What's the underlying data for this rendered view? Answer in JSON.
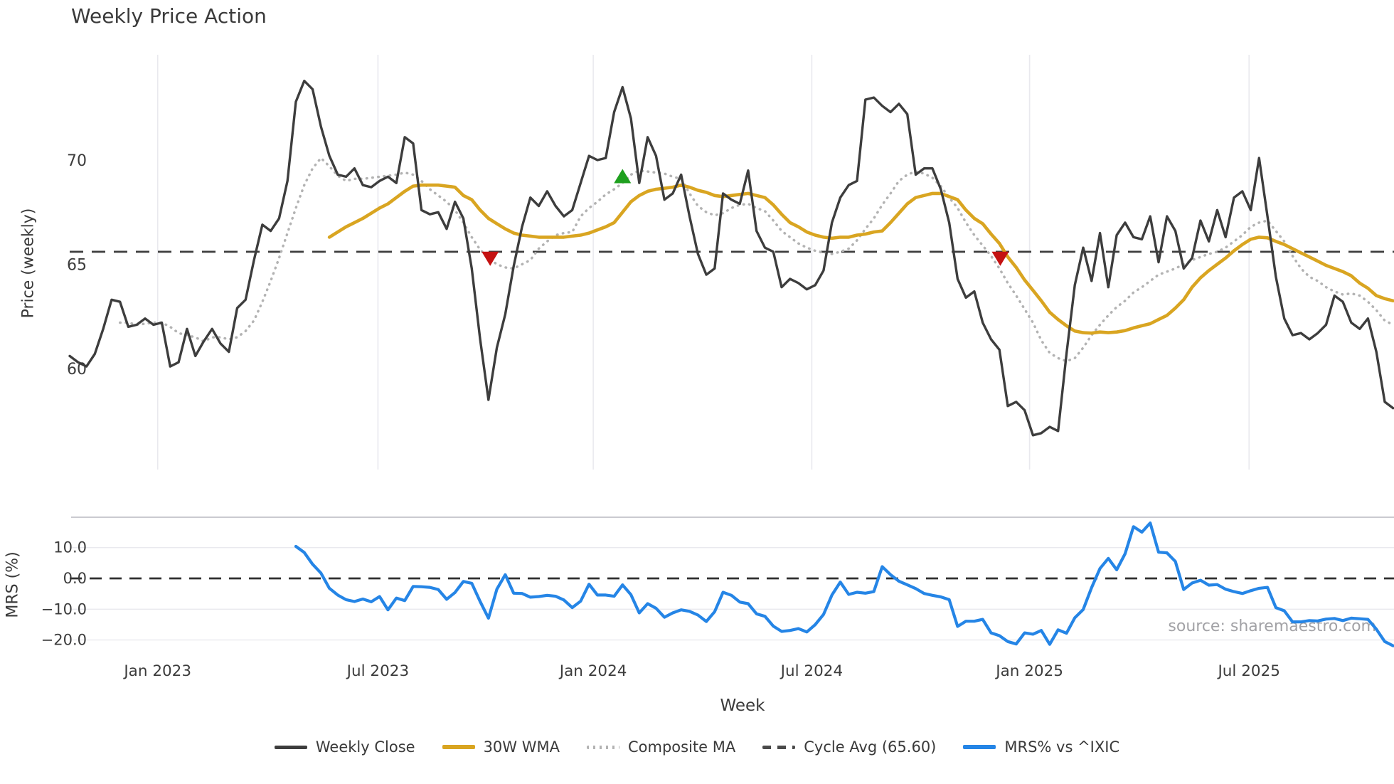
{
  "title": "Weekly Price Action",
  "source": "source: sharemaestro.com",
  "legend": [
    {
      "label": "Weekly Close",
      "style": "solid",
      "color": "#3d3d3d",
      "thickness": 5
    },
    {
      "label": "30W WMA",
      "style": "solid",
      "color": "#d9a521",
      "thickness": 6
    },
    {
      "label": "Composite MA",
      "style": "dotted",
      "color": "#b3b3b3",
      "thickness": 5
    },
    {
      "label": "Cycle Avg (65.60)",
      "style": "dashed",
      "color": "#4a4a4a",
      "thickness": 5
    },
    {
      "label": "MRS% vs ^IXIC",
      "style": "solid",
      "color": "#2585e6",
      "thickness": 6
    }
  ],
  "chart_data": {
    "type": "line",
    "xlabel": "Week",
    "x_unit": "week_index",
    "xticks": [
      {
        "label": "Jan 2023",
        "week": 10.5
      },
      {
        "label": "Jul 2023",
        "week": 36.8
      },
      {
        "label": "Jan 2024",
        "week": 62.5
      },
      {
        "label": "Jul 2024",
        "week": 88.6
      },
      {
        "label": "Jan 2025",
        "week": 114.6
      },
      {
        "label": "Jul 2025",
        "week": 140.8
      }
    ],
    "grid_color": "#e9e9ee",
    "panels": [
      {
        "ylabel": "Price (weekly)",
        "ylim": [
          55.2,
          75.1
        ],
        "yticks": [
          {
            "label": "70",
            "value": 70
          },
          {
            "label": "65",
            "value": 65
          },
          {
            "label": "60",
            "value": 60
          }
        ],
        "hline": {
          "label": "Cycle Avg (65.60)",
          "value": 65.6,
          "style": "dashed",
          "color": "#3d3d3d"
        },
        "markers": [
          {
            "type": "sell",
            "shape": "triangle-down",
            "color": "#c41212",
            "week": 50.2,
            "value": 65.3
          },
          {
            "type": "buy",
            "shape": "triangle-up",
            "color": "#1fa01f",
            "week": 66.0,
            "value": 69.2
          },
          {
            "type": "sell",
            "shape": "triangle-down",
            "color": "#c41212",
            "week": 111.1,
            "value": 65.3
          }
        ],
        "series": [
          {
            "name": "Composite MA",
            "style": "dotted",
            "color": "#b3b3b3",
            "width": 3.5,
            "start_week": 6,
            "values": [
              62.2,
              62.2,
              62.1,
              62.15,
              62.2,
              62.2,
              62.0,
              61.7,
              61.6,
              61.5,
              61.3,
              61.5,
              61.5,
              61.4,
              61.5,
              61.8,
              62.3,
              63.2,
              64.2,
              65.3,
              66.5,
              67.7,
              68.8,
              69.6,
              70.1,
              69.7,
              69.25,
              69.0,
              69.1,
              69.1,
              69.15,
              69.2,
              69.25,
              69.3,
              69.4,
              69.3,
              69.0,
              68.6,
              68.3,
              68.0,
              67.6,
              67.0,
              66.3,
              65.7,
              65.3,
              65.0,
              64.85,
              64.8,
              65.0,
              65.2,
              65.75,
              66.1,
              66.4,
              66.5,
              66.55,
              67.3,
              67.7,
              68.0,
              68.35,
              68.6,
              68.9,
              69.3,
              69.5,
              69.45,
              69.4,
              69.35,
              69.2,
              69.1,
              68.4,
              67.8,
              67.5,
              67.35,
              67.45,
              67.7,
              67.85,
              67.9,
              67.7,
              67.55,
              67.1,
              66.6,
              66.3,
              66.0,
              65.8,
              65.65,
              65.55,
              65.5,
              65.6,
              65.75,
              66.15,
              66.7,
              67.2,
              67.85,
              68.4,
              69.0,
              69.3,
              69.45,
              69.35,
              69.15,
              68.75,
              68.2,
              67.7,
              67.0,
              66.4,
              65.9,
              65.4,
              64.8,
              64.1,
              63.5,
              62.85,
              62.2,
              61.35,
              60.75,
              60.5,
              60.35,
              60.5,
              61.0,
              61.6,
              62.1,
              62.55,
              62.95,
              63.25,
              63.65,
              63.9,
              64.2,
              64.5,
              64.65,
              64.8,
              65.0,
              65.2,
              65.35,
              65.5,
              65.6,
              65.8,
              66.1,
              66.4,
              66.8,
              67.0,
              67.1,
              66.6,
              66.1,
              65.4,
              64.8,
              64.4,
              64.2,
              63.9,
              63.7,
              63.55,
              63.6,
              63.5,
              63.2,
              62.8,
              62.3,
              62.1
            ]
          },
          {
            "name": "30W WMA",
            "style": "solid",
            "color": "#d9a521",
            "width": 4.6,
            "start_week": 31,
            "values": [
              66.3,
              66.55,
              66.8,
              67.0,
              67.2,
              67.45,
              67.7,
              67.9,
              68.2,
              68.5,
              68.75,
              68.8,
              68.8,
              68.8,
              68.75,
              68.7,
              68.3,
              68.1,
              67.6,
              67.2,
              66.95,
              66.7,
              66.5,
              66.4,
              66.35,
              66.3,
              66.3,
              66.3,
              66.3,
              66.35,
              66.4,
              66.5,
              66.65,
              66.8,
              67.0,
              67.5,
              68.0,
              68.3,
              68.5,
              68.6,
              68.65,
              68.7,
              68.8,
              68.7,
              68.55,
              68.45,
              68.3,
              68.25,
              68.3,
              68.35,
              68.4,
              68.3,
              68.2,
              67.85,
              67.4,
              67.0,
              66.8,
              66.55,
              66.4,
              66.3,
              66.25,
              66.3,
              66.3,
              66.4,
              66.45,
              66.55,
              66.6,
              67.0,
              67.45,
              67.9,
              68.2,
              68.3,
              68.4,
              68.4,
              68.25,
              68.1,
              67.6,
              67.2,
              66.95,
              66.45,
              66.0,
              65.35,
              64.85,
              64.25,
              63.75,
              63.25,
              62.7,
              62.35,
              62.05,
              61.8,
              61.72,
              61.7,
              61.75,
              61.72,
              61.75,
              61.82,
              61.95,
              62.05,
              62.15,
              62.35,
              62.55,
              62.9,
              63.3,
              63.9,
              64.35,
              64.7,
              65.0,
              65.3,
              65.65,
              65.95,
              66.2,
              66.3,
              66.27,
              66.1,
              65.95,
              65.75,
              65.55,
              65.35,
              65.15,
              64.95,
              64.8,
              64.65,
              64.45,
              64.1,
              63.85,
              63.5,
              63.35,
              63.25
            ]
          },
          {
            "name": "Weekly Close",
            "style": "solid",
            "color": "#3d3d3d",
            "width": 3.4,
            "start_week": 0,
            "values": [
              60.6,
              60.3,
              60.1,
              60.7,
              61.9,
              63.3,
              63.2,
              62.0,
              62.1,
              62.4,
              62.1,
              62.2,
              60.1,
              60.3,
              61.9,
              60.6,
              61.3,
              61.9,
              61.2,
              60.8,
              62.9,
              63.3,
              65.2,
              66.9,
              66.6,
              67.2,
              69.0,
              72.8,
              73.8,
              73.4,
              71.6,
              70.2,
              69.3,
              69.2,
              69.6,
              68.8,
              68.7,
              69.0,
              69.2,
              68.9,
              71.1,
              70.8,
              67.6,
              67.4,
              67.5,
              66.7,
              68.0,
              67.2,
              64.8,
              61.4,
              58.5,
              61.0,
              62.6,
              64.9,
              66.8,
              68.2,
              67.8,
              68.5,
              67.8,
              67.3,
              67.6,
              68.9,
              70.2,
              70.0,
              70.1,
              72.3,
              73.5,
              72.0,
              68.9,
              71.1,
              70.2,
              68.1,
              68.4,
              69.3,
              67.3,
              65.5,
              64.5,
              64.8,
              68.4,
              68.1,
              67.9,
              69.5,
              66.6,
              65.8,
              65.6,
              63.9,
              64.3,
              64.1,
              63.8,
              64.0,
              64.7,
              67.0,
              68.2,
              68.8,
              69.0,
              72.9,
              73.0,
              72.6,
              72.3,
              72.7,
              72.2,
              69.3,
              69.6,
              69.6,
              68.6,
              67.0,
              64.3,
              63.4,
              63.7,
              62.2,
              61.4,
              60.9,
              58.2,
              58.4,
              58.0,
              56.8,
              56.9,
              57.2,
              57.0,
              60.7,
              64.0,
              65.8,
              64.2,
              66.5,
              63.9,
              66.4,
              67.0,
              66.3,
              66.2,
              67.3,
              65.1,
              67.3,
              66.6,
              64.8,
              65.3,
              67.1,
              66.1,
              67.6,
              66.3,
              68.2,
              68.5,
              67.6,
              70.1,
              67.3,
              64.4,
              62.4,
              61.6,
              61.7,
              61.4,
              61.7,
              62.1,
              63.5,
              63.2,
              62.2,
              61.9,
              62.4,
              60.8,
              58.4,
              58.1
            ]
          }
        ]
      },
      {
        "ylabel": "MRS (%)",
        "ylim": [
          -23.0,
          19.9
        ],
        "yticks": [
          {
            "label": "10.0",
            "value": 10
          },
          {
            "label": "0.0",
            "value": 0
          },
          {
            "label": "−10.0",
            "value": -10
          },
          {
            "label": "−20.0",
            "value": -20
          }
        ],
        "grid_values": [
          10,
          -10,
          -20
        ],
        "hline": {
          "label": "zero",
          "value": 0,
          "style": "dashed",
          "color": "#303030"
        },
        "series": [
          {
            "name": "MRS% vs ^IXIC",
            "style": "solid",
            "color": "#2585e6",
            "width": 4.2,
            "start_week": 27,
            "values": [
              10.4,
              8.4,
              4.6,
              1.7,
              -3.2,
              -5.4,
              -6.9,
              -7.5,
              -6.7,
              -7.6,
              -5.9,
              -10.2,
              -6.4,
              -7.2,
              -2.6,
              -2.7,
              -2.9,
              -3.6,
              -6.8,
              -4.6,
              -1.0,
              -1.6,
              -7.5,
              -12.9,
              -3.5,
              1.2,
              -4.8,
              -4.9,
              -6.1,
              -5.9,
              -5.5,
              -5.8,
              -7.0,
              -9.5,
              -7.4,
              -1.9,
              -5.4,
              -5.4,
              -5.8,
              -2.1,
              -5.3,
              -11.2,
              -8.2,
              -9.7,
              -12.6,
              -11.2,
              -10.2,
              -10.7,
              -11.9,
              -14.0,
              -10.8,
              -4.5,
              -5.5,
              -7.7,
              -8.2,
              -11.5,
              -12.3,
              -15.5,
              -17.2,
              -16.9,
              -16.3,
              -17.4,
              -15.0,
              -11.7,
              -5.4,
              -1.2,
              -5.2,
              -4.5,
              -4.8,
              -4.3,
              3.8,
              1.2,
              -0.9,
              -2.1,
              -3.3,
              -4.9,
              -5.5,
              -6.0,
              -6.9,
              -15.6,
              -13.9,
              -13.9,
              -13.3,
              -17.7,
              -18.6,
              -20.5,
              -21.3,
              -17.7,
              -18.1,
              -16.9,
              -21.4,
              -16.7,
              -17.8,
              -12.8,
              -10.1,
              -3.0,
              3.2,
              6.5,
              2.8,
              8.0,
              16.8,
              15.0,
              18.0,
              8.5,
              8.3,
              5.5,
              -3.6,
              -1.5,
              -0.6,
              -2.2,
              -2.0,
              -3.5,
              -4.3,
              -4.9,
              -4.0,
              -3.2,
              -2.9,
              -9.5,
              -10.5,
              -14.1,
              -14.1,
              -13.7,
              -13.8,
              -13.2,
              -13.0,
              -13.7,
              -12.9,
              -13.1,
              -13.3,
              -16.5,
              -20.5,
              -21.9
            ]
          }
        ]
      }
    ]
  }
}
